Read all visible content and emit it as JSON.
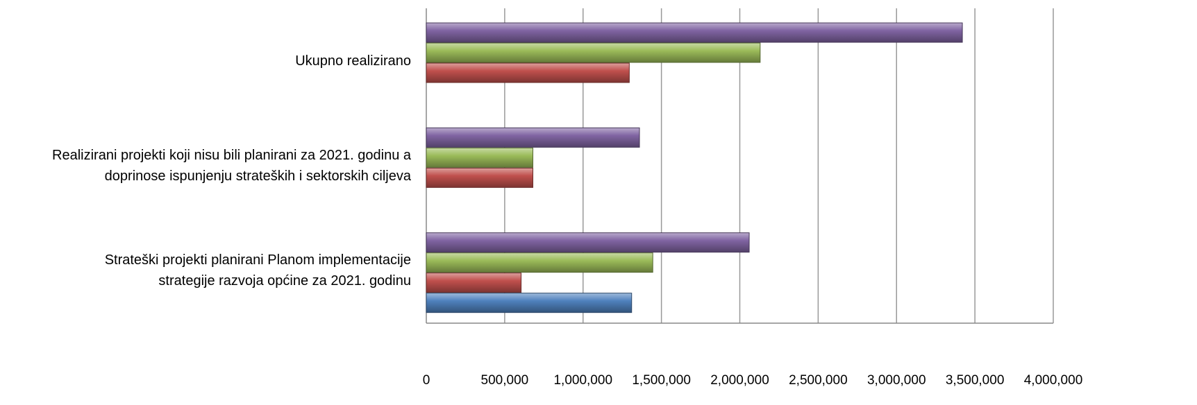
{
  "chart_data": {
    "type": "bar",
    "orientation": "horizontal",
    "title": "",
    "xlabel": "",
    "ylabel": "",
    "xlim": [
      0,
      4000000
    ],
    "grid": true,
    "legend": "none",
    "tick_labels": [
      "0",
      "500,000",
      "1,000,000",
      "1,500,000",
      "2,000,000",
      "2,500,000",
      "3,000,000",
      "3,500,000",
      "4,000,000"
    ],
    "categories": [
      "Ukupno realizirano",
      "Realizirani projekti koji nisu bili planirani za 2021. godinu a doprinose ispunjenju strateških i sektorskih ciljeva",
      "Strateški projekti planirani Planom implementacije strategije razvoja općine za 2021. godinu"
    ],
    "category_lines": [
      [
        "Ukupno realizirano"
      ],
      [
        "Realizirani projekti koji nisu bili planirani za 2021. godinu a",
        "doprinose ispunjenju strateških i sektorskih ciljeva"
      ],
      [
        "Strateški projekti planirani Planom implementacije",
        "strategije razvoja općine za 2021. godinu"
      ]
    ],
    "series": [
      {
        "color": "#8064A2",
        "values": [
          3420000,
          1360000,
          2060000
        ]
      },
      {
        "color": "#9BBB59",
        "values": [
          2130000,
          680000,
          1445000
        ]
      },
      {
        "color": "#C0504D",
        "values": [
          1295000,
          680000,
          605000
        ]
      },
      {
        "color": "#4F81BD",
        "values": [
          null,
          null,
          1310000
        ]
      }
    ]
  }
}
